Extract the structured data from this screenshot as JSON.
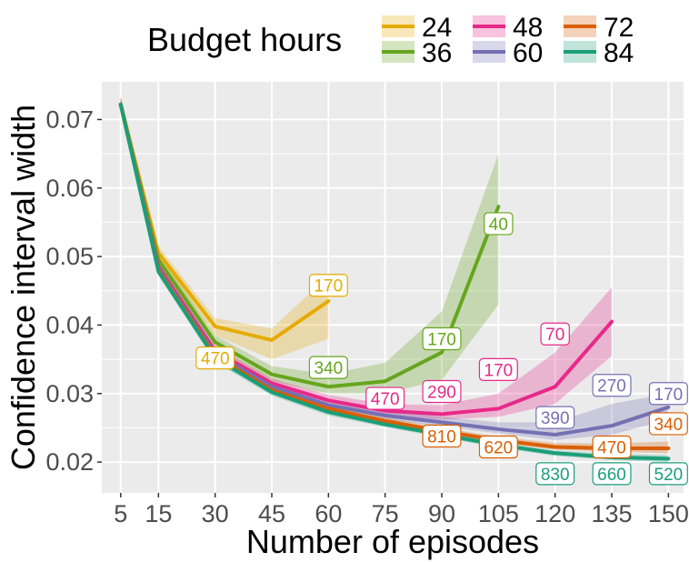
{
  "chart_data": {
    "type": "line",
    "title": "",
    "xlabel": "Number of episodes",
    "ylabel": "Confidence interval width",
    "x_ticks": [
      "5",
      "15",
      "30",
      "45",
      "60",
      "75",
      "90",
      "105",
      "120",
      "135",
      "150"
    ],
    "x_tick_values": [
      5,
      15,
      30,
      45,
      60,
      75,
      90,
      105,
      120,
      135,
      150
    ],
    "y_ticks": [
      "0.02",
      "0.03",
      "0.04",
      "0.05",
      "0.06",
      "0.07"
    ],
    "y_tick_values": [
      0.02,
      0.03,
      0.04,
      0.05,
      0.06,
      0.07
    ],
    "xlim": [
      0,
      154
    ],
    "ylim": [
      0.0155,
      0.0755
    ],
    "grid": true,
    "legend": {
      "title": "Budget hours",
      "position": "top",
      "entries": [
        "24",
        "36",
        "48",
        "60",
        "72",
        "84"
      ]
    },
    "series": [
      {
        "name": "24",
        "color": "#E6AB02",
        "x": [
          5,
          15,
          30,
          45,
          60
        ],
        "y": [
          0.0722,
          0.0505,
          0.0398,
          0.0378,
          0.0435
        ],
        "lower": [
          0.0712,
          0.0495,
          0.0385,
          0.035,
          0.038
        ],
        "upper": [
          0.0735,
          0.0515,
          0.041,
          0.0395,
          0.0472
        ],
        "labels": [
          {
            "x": 30,
            "y": 0.0352,
            "text": "470"
          },
          {
            "x": 60,
            "y": 0.0458,
            "text": "170"
          }
        ]
      },
      {
        "name": "36",
        "color": "#66A61E",
        "x": [
          5,
          15,
          30,
          45,
          60,
          75,
          90,
          105
        ],
        "y": [
          0.0722,
          0.0495,
          0.0375,
          0.0328,
          0.031,
          0.0318,
          0.036,
          0.0573
        ],
        "lower": [
          0.0712,
          0.0485,
          0.0365,
          0.0318,
          0.03,
          0.03,
          0.032,
          0.043
        ],
        "upper": [
          0.0732,
          0.0505,
          0.0385,
          0.034,
          0.0328,
          0.0345,
          0.042,
          0.065
        ],
        "labels": [
          {
            "x": 60,
            "y": 0.0338,
            "text": "340"
          },
          {
            "x": 90,
            "y": 0.038,
            "text": "170"
          },
          {
            "x": 105,
            "y": 0.0548,
            "text": "40"
          }
        ]
      },
      {
        "name": "48",
        "color": "#E7298A",
        "x": [
          5,
          15,
          30,
          45,
          60,
          75,
          90,
          105,
          120,
          135
        ],
        "y": [
          0.0722,
          0.0485,
          0.0362,
          0.0315,
          0.029,
          0.0275,
          0.027,
          0.0278,
          0.031,
          0.0405
        ],
        "lower": [
          0.0712,
          0.0478,
          0.0355,
          0.0308,
          0.0284,
          0.0268,
          0.0262,
          0.0266,
          0.0285,
          0.0355
        ],
        "upper": [
          0.0732,
          0.0492,
          0.037,
          0.0322,
          0.0298,
          0.0285,
          0.0283,
          0.03,
          0.036,
          0.0455
        ],
        "labels": [
          {
            "x": 75,
            "y": 0.0293,
            "text": "470"
          },
          {
            "x": 90,
            "y": 0.0303,
            "text": "290"
          },
          {
            "x": 105,
            "y": 0.0335,
            "text": "170"
          },
          {
            "x": 120,
            "y": 0.0387,
            "text": "70"
          }
        ]
      },
      {
        "name": "60",
        "color": "#7570B3",
        "x": [
          5,
          15,
          30,
          45,
          60,
          75,
          90,
          105,
          120,
          135,
          150
        ],
        "y": [
          0.0722,
          0.0482,
          0.0358,
          0.031,
          0.0283,
          0.0268,
          0.0258,
          0.0248,
          0.024,
          0.0253,
          0.028
        ],
        "lower": [
          0.0712,
          0.0476,
          0.0352,
          0.0304,
          0.0278,
          0.0262,
          0.0252,
          0.0242,
          0.0232,
          0.024,
          0.0262
        ],
        "upper": [
          0.0732,
          0.0488,
          0.0364,
          0.0316,
          0.029,
          0.0275,
          0.0266,
          0.0258,
          0.0258,
          0.0285,
          0.03
        ],
        "labels": [
          {
            "x": 120,
            "y": 0.0265,
            "text": "390"
          },
          {
            "x": 135,
            "y": 0.0312,
            "text": "270"
          },
          {
            "x": 150,
            "y": 0.03,
            "text": "170"
          }
        ]
      },
      {
        "name": "72",
        "color": "#D95F02",
        "x": [
          5,
          15,
          30,
          45,
          60,
          75,
          90,
          105,
          120,
          135,
          150
        ],
        "y": [
          0.0722,
          0.048,
          0.0355,
          0.0305,
          0.0278,
          0.026,
          0.0245,
          0.0232,
          0.0222,
          0.022,
          0.022
        ],
        "lower": [
          0.0712,
          0.0474,
          0.0349,
          0.03,
          0.0273,
          0.0256,
          0.0241,
          0.0228,
          0.0218,
          0.0215,
          0.0213
        ],
        "upper": [
          0.0732,
          0.0486,
          0.0361,
          0.031,
          0.0283,
          0.0265,
          0.025,
          0.0237,
          0.0228,
          0.0227,
          0.023
        ],
        "labels": [
          {
            "x": 90,
            "y": 0.0238,
            "text": "810"
          },
          {
            "x": 105,
            "y": 0.0222,
            "text": "620"
          },
          {
            "x": 135,
            "y": 0.0222,
            "text": "470"
          },
          {
            "x": 150,
            "y": 0.0256,
            "text": "340"
          }
        ]
      },
      {
        "name": "84",
        "color": "#1B9E77",
        "x": [
          5,
          15,
          30,
          45,
          60,
          75,
          90,
          105,
          120,
          135,
          150
        ],
        "y": [
          0.0722,
          0.0478,
          0.0352,
          0.0302,
          0.0273,
          0.0255,
          0.024,
          0.0225,
          0.0213,
          0.0207,
          0.0205
        ],
        "lower": [
          0.0712,
          0.0472,
          0.0346,
          0.0297,
          0.0268,
          0.0251,
          0.0236,
          0.0221,
          0.0209,
          0.0203,
          0.02
        ],
        "upper": [
          0.0732,
          0.0484,
          0.0358,
          0.0307,
          0.0278,
          0.0259,
          0.0244,
          0.0229,
          0.0217,
          0.0212,
          0.021
        ],
        "labels": [
          {
            "x": 120,
            "y": 0.0183,
            "text": "830"
          },
          {
            "x": 135,
            "y": 0.0183,
            "text": "660"
          },
          {
            "x": 150,
            "y": 0.0183,
            "text": "520"
          }
        ]
      }
    ]
  }
}
